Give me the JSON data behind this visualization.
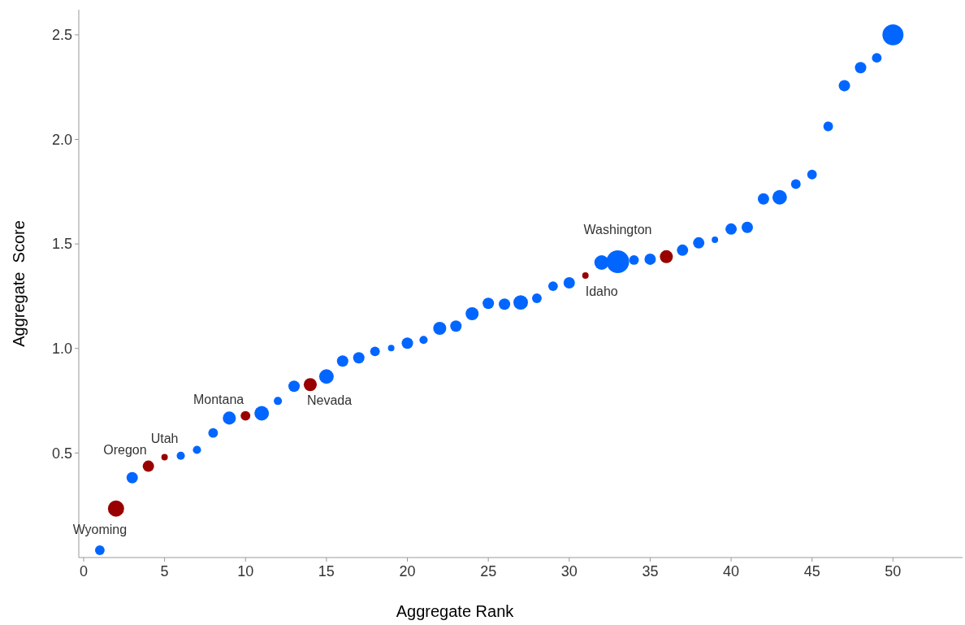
{
  "chart_data": {
    "type": "bubble",
    "xlabel": "Aggregate Rank",
    "ylabel": "Aggregate  Score",
    "xlim": [
      -0.3,
      54.3
    ],
    "xticks": [
      0,
      5,
      10,
      15,
      20,
      25,
      30,
      35,
      40,
      45,
      50
    ],
    "ylim": [
      0,
      2.62
    ],
    "yticks": [
      0.5,
      {
        "value": 1,
        "label": "1.0"
      },
      1.5,
      {
        "value": 2,
        "label": "2.0"
      },
      2.5
    ],
    "grid": false,
    "marker": "circle",
    "series": [
      {
        "x": [
          1,
          2,
          3,
          4,
          5,
          6,
          7,
          8,
          9,
          10,
          11,
          12,
          13,
          14,
          15,
          16,
          17,
          18,
          19,
          20,
          21,
          22,
          23,
          24,
          25,
          26,
          27,
          28,
          29,
          30,
          31,
          32,
          33,
          34,
          35,
          36,
          37,
          38,
          39,
          40,
          41,
          42,
          43,
          44,
          45,
          46,
          47,
          48,
          49,
          50
        ],
        "values": [
          0.035,
          0.234,
          0.382,
          0.437,
          0.48,
          0.487,
          0.515,
          0.596,
          0.667,
          0.678,
          0.69,
          0.749,
          0.819,
          0.827,
          0.866,
          0.94,
          0.955,
          0.986,
          1.002,
          1.025,
          1.041,
          1.096,
          1.107,
          1.166,
          1.216,
          1.212,
          1.22,
          1.24,
          1.298,
          1.314,
          1.349,
          1.411,
          1.415,
          1.423,
          1.427,
          1.439,
          1.47,
          1.505,
          1.52,
          1.571,
          1.579,
          1.715,
          1.723,
          1.786,
          1.832,
          2.062,
          2.257,
          2.343,
          2.39,
          2.5
        ],
        "sizes": [
          0.18,
          0.51,
          0.25,
          0.25,
          0.08,
          0.13,
          0.13,
          0.18,
          0.33,
          0.18,
          0.41,
          0.13,
          0.25,
          0.33,
          0.41,
          0.25,
          0.25,
          0.18,
          0.08,
          0.25,
          0.13,
          0.33,
          0.25,
          0.33,
          0.25,
          0.25,
          0.41,
          0.18,
          0.18,
          0.25,
          0.08,
          0.41,
          1,
          0.18,
          0.25,
          0.33,
          0.25,
          0.25,
          0.08,
          0.25,
          0.25,
          0.25,
          0.41,
          0.18,
          0.18,
          0.18,
          0.25,
          0.25,
          0.18,
          0.86
        ],
        "colors": [
          "#0066ff",
          "#990000",
          "#0066ff",
          "#990000",
          "#990000",
          "#0066ff",
          "#0066ff",
          "#0066ff",
          "#0066ff",
          "#990000",
          "#0066ff",
          "#0066ff",
          "#0066ff",
          "#990000",
          "#0066ff",
          "#0066ff",
          "#0066ff",
          "#0066ff",
          "#0066ff",
          "#0066ff",
          "#0066ff",
          "#0066ff",
          "#0066ff",
          "#0066ff",
          "#0066ff",
          "#0066ff",
          "#0066ff",
          "#0066ff",
          "#0066ff",
          "#0066ff",
          "#990000",
          "#0066ff",
          "#0066ff",
          "#0066ff",
          "#0066ff",
          "#990000",
          "#0066ff",
          "#0066ff",
          "#0066ff",
          "#0066ff",
          "#0066ff",
          "#0066ff",
          "#0066ff",
          "#0066ff",
          "#0066ff",
          "#0066ff",
          "#0066ff",
          "#0066ff",
          "#0066ff",
          "#0066ff"
        ]
      }
    ],
    "annotations": [
      {
        "text": "Wyoming",
        "x": 1,
        "y": 0.035
      },
      {
        "text": "Oregon",
        "x": 4,
        "y": 0.437
      },
      {
        "text": "Utah",
        "x": 5,
        "y": 0.48
      },
      {
        "text": "Montana",
        "x": 10,
        "y": 0.678
      },
      {
        "text": "Nevada",
        "x": 14,
        "y": 0.827
      },
      {
        "text": "Idaho",
        "x": 31,
        "y": 1.349
      },
      {
        "text": "Washington",
        "x": 33,
        "y": 1.415
      }
    ]
  }
}
